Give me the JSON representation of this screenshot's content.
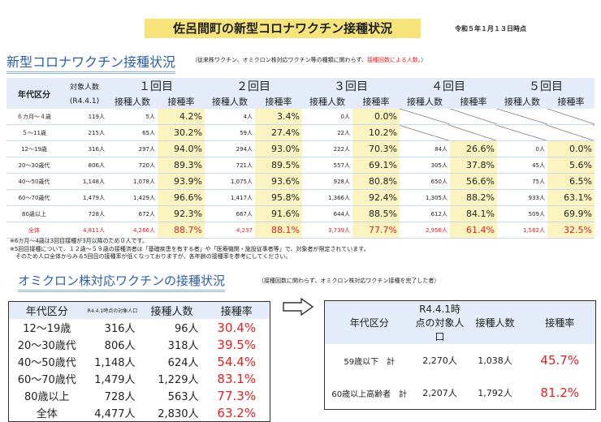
{
  "header": {
    "title": "佐呂間町の新型コロナワクチン接種状況",
    "as_of": "令和５年１月１３日時点"
  },
  "section1": {
    "title": "新型コロナワクチン接種状況",
    "note_prefix": "（従来株ワクチン、オミクロン株対応ワクチン等の種類に関わらず、",
    "note_red": "接種回数による人数。",
    "note_suffix": "）"
  },
  "table1": {
    "age_header": "年代区分",
    "pop_header": "対象人数",
    "pop_sub": "(R4.4.1)",
    "rounds": [
      "１回目",
      "２回目",
      "３回目",
      "４回目",
      "５回目"
    ],
    "count_header": "接種人数",
    "rate_header": "接種率",
    "rows": [
      {
        "age": "６カ月～４歳",
        "pop": "119人",
        "cells": [
          [
            "5人",
            "4.2%"
          ],
          [
            "4人",
            "3.4%"
          ],
          [
            "0人",
            "0.0%"
          ],
          null,
          null
        ]
      },
      {
        "age": "５～11歳",
        "pop": "215人",
        "cells": [
          [
            "65人",
            "30.2%"
          ],
          [
            "59人",
            "27.4%"
          ],
          [
            "22人",
            "10.2%"
          ],
          null,
          null
        ]
      },
      {
        "age": "12～19歳",
        "pop": "316人",
        "cells": [
          [
            "297人",
            "94.0%"
          ],
          [
            "294人",
            "93.0%"
          ],
          [
            "222人",
            "70.3%"
          ],
          [
            "84人",
            "26.6%"
          ],
          [
            "0人",
            "0.0%"
          ]
        ]
      },
      {
        "age": "20～30歳代",
        "pop": "806人",
        "cells": [
          [
            "720人",
            "89.3%"
          ],
          [
            "721人",
            "89.5%"
          ],
          [
            "557人",
            "69.1%"
          ],
          [
            "305人",
            "37.8%"
          ],
          [
            "45人",
            "5.6%"
          ]
        ]
      },
      {
        "age": "40～50歳代",
        "pop": "1,148人",
        "cells": [
          [
            "1,078人",
            "93.9%"
          ],
          [
            "1,075人",
            "93.6%"
          ],
          [
            "928人",
            "80.8%"
          ],
          [
            "650人",
            "56.6%"
          ],
          [
            "75人",
            "6.5%"
          ]
        ]
      },
      {
        "age": "60～70歳代",
        "pop": "1,479人",
        "cells": [
          [
            "1,429人",
            "96.6%"
          ],
          [
            "1,417人",
            "95.8%"
          ],
          [
            "1,366人",
            "92.4%"
          ],
          [
            "1,305人",
            "88.2%"
          ],
          [
            "933人",
            "63.1%"
          ]
        ]
      },
      {
        "age": "80歳以上",
        "pop": "728人",
        "cells": [
          [
            "672人",
            "92.3%"
          ],
          [
            "667人",
            "91.6%"
          ],
          [
            "644人",
            "88.5%"
          ],
          [
            "612人",
            "84.1%"
          ],
          [
            "509人",
            "69.9%"
          ]
        ]
      },
      {
        "age": "全体",
        "pop": "4,811人",
        "cells": [
          [
            "4,266人",
            "88.7%"
          ],
          [
            "4,237",
            "88.1%"
          ],
          [
            "3,739人",
            "77.7%"
          ],
          [
            "2,956人",
            "61.4%"
          ],
          [
            "1,562人",
            "32.5%"
          ]
        ]
      }
    ]
  },
  "footnotes": [
    "※6カ月～4歳は3回目接種が3月以降のため０人です。",
    "※5回目接種について、１２歳～５９歳の接種済者は「基礎疾患を有する者」や「医療機関・施設従事者等」で、対象者が限定されています。",
    "　そのため人口全体からみる5回目の接種率が低くなっておりますが、各年齢の接種率を参考にしてください。"
  ],
  "section2": {
    "title": "オミクロン株対応ワクチンの接種状況",
    "note": "（接種回数に関わらず、オミクロン株対応ワクチン接種を完了した者）"
  },
  "table2": {
    "age_header": "年代区分",
    "pop_header": "R4.4.1時点の対象人口",
    "count_header": "接種人数",
    "rate_header": "接種率",
    "rows": [
      {
        "age": "12～19歳",
        "pop": "316人",
        "count": "96人",
        "rate": "30.4%"
      },
      {
        "age": "20～30歳代",
        "pop": "806人",
        "count": "318人",
        "rate": "39.5%"
      },
      {
        "age": "40～50歳代",
        "pop": "1,148人",
        "count": "624人",
        "rate": "54.4%"
      },
      {
        "age": "60～70歳代",
        "pop": "1,479人",
        "count": "1,229人",
        "rate": "83.1%"
      },
      {
        "age": "80歳以上",
        "pop": "728人",
        "count": "563人",
        "rate": "77.3%"
      },
      {
        "age": "全体",
        "pop": "4,477人",
        "count": "2,830人",
        "rate": "63.2%"
      }
    ]
  },
  "table3": {
    "age_header": "年代区分",
    "pop_header": "R4.4.1時点の対象人口",
    "count_header": "接種人数",
    "rate_header": "接種率",
    "rows": [
      {
        "age": "59歳以下　計",
        "pop": "2,270人",
        "count": "1,038人",
        "rate": "45.7%"
      },
      {
        "age": "60歳以上高齢者　計",
        "pop": "2,207人",
        "count": "1,792人",
        "rate": "81.2%"
      }
    ]
  },
  "icons": {
    "arrow": "right-arrow-icon"
  },
  "colors": {
    "banner": "#f7e57c",
    "header_blue": "#2a5fa8",
    "rate_highlight": "#fbf4c0",
    "red": "#e02020"
  }
}
